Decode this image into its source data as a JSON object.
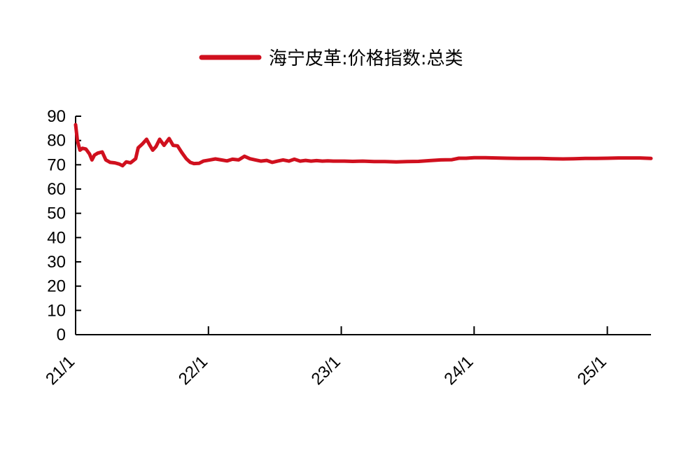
{
  "chart_data": {
    "type": "line",
    "title": "",
    "xlabel": "",
    "ylabel": "",
    "ylim": [
      0,
      90
    ],
    "yticks": [
      0,
      10,
      20,
      30,
      40,
      50,
      60,
      70,
      80,
      90
    ],
    "xlim": [
      "2021-01",
      "2025-05"
    ],
    "xticks": [
      {
        "label": "21/1",
        "date": "2021-01"
      },
      {
        "label": "22/1",
        "date": "2022-01"
      },
      {
        "label": "23/1",
        "date": "2023-01"
      },
      {
        "label": "24/1",
        "date": "2024-01"
      },
      {
        "label": "25/1",
        "date": "2025-01"
      }
    ],
    "grid": false,
    "legend_position": "top-center",
    "series": [
      {
        "name": "海宁皮革:价格指数:总类",
        "color": "#D0101E",
        "points": [
          [
            "2021-01-01",
            86.5
          ],
          [
            "2021-01-06",
            80.0
          ],
          [
            "2021-01-13",
            76.0
          ],
          [
            "2021-01-20",
            76.8
          ],
          [
            "2021-01-29",
            76.5
          ],
          [
            "2021-02-08",
            74.5
          ],
          [
            "2021-02-15",
            72.0
          ],
          [
            "2021-02-22",
            74.0
          ],
          [
            "2021-03-03",
            74.8
          ],
          [
            "2021-03-15",
            75.3
          ],
          [
            "2021-03-25",
            72.0
          ],
          [
            "2021-04-06",
            71.0
          ],
          [
            "2021-04-19",
            70.8
          ],
          [
            "2021-05-01",
            70.3
          ],
          [
            "2021-05-10",
            69.6
          ],
          [
            "2021-05-20",
            71.2
          ],
          [
            "2021-06-01",
            70.8
          ],
          [
            "2021-06-15",
            72.5
          ],
          [
            "2021-06-22",
            77.0
          ],
          [
            "2021-07-03",
            78.5
          ],
          [
            "2021-07-15",
            80.5
          ],
          [
            "2021-07-24",
            78.0
          ],
          [
            "2021-08-01",
            76.0
          ],
          [
            "2021-08-10",
            77.5
          ],
          [
            "2021-08-20",
            80.5
          ],
          [
            "2021-09-01",
            78.0
          ],
          [
            "2021-09-15",
            80.8
          ],
          [
            "2021-09-26",
            78.0
          ],
          [
            "2021-10-08",
            77.8
          ],
          [
            "2021-10-20",
            75.0
          ],
          [
            "2021-11-01",
            72.5
          ],
          [
            "2021-11-12",
            71.0
          ],
          [
            "2021-11-22",
            70.5
          ],
          [
            "2021-12-06",
            70.6
          ],
          [
            "2021-12-18",
            71.5
          ],
          [
            "2022-01-05",
            72.0
          ],
          [
            "2022-01-20",
            72.4
          ],
          [
            "2022-02-05",
            72.0
          ],
          [
            "2022-02-21",
            71.6
          ],
          [
            "2022-03-08",
            72.3
          ],
          [
            "2022-03-25",
            72.0
          ],
          [
            "2022-04-10",
            73.5
          ],
          [
            "2022-04-25",
            72.5
          ],
          [
            "2022-05-10",
            72.0
          ],
          [
            "2022-05-25",
            71.5
          ],
          [
            "2022-06-10",
            71.8
          ],
          [
            "2022-06-25",
            71.0
          ],
          [
            "2022-07-10",
            71.5
          ],
          [
            "2022-07-25",
            72.0
          ],
          [
            "2022-08-10",
            71.5
          ],
          [
            "2022-08-25",
            72.3
          ],
          [
            "2022-09-10",
            71.5
          ],
          [
            "2022-09-25",
            71.8
          ],
          [
            "2022-10-10",
            71.5
          ],
          [
            "2022-10-25",
            71.7
          ],
          [
            "2022-11-10",
            71.5
          ],
          [
            "2022-11-25",
            71.6
          ],
          [
            "2022-12-10",
            71.5
          ],
          [
            "2022-12-25",
            71.5
          ],
          [
            "2023-01-10",
            71.5
          ],
          [
            "2023-02-01",
            71.4
          ],
          [
            "2023-03-01",
            71.5
          ],
          [
            "2023-04-01",
            71.3
          ],
          [
            "2023-05-01",
            71.3
          ],
          [
            "2023-06-01",
            71.2
          ],
          [
            "2023-07-01",
            71.3
          ],
          [
            "2023-08-01",
            71.4
          ],
          [
            "2023-09-01",
            71.7
          ],
          [
            "2023-10-01",
            72.0
          ],
          [
            "2023-11-01",
            72.1
          ],
          [
            "2023-11-20",
            72.7
          ],
          [
            "2023-12-10",
            72.7
          ],
          [
            "2024-01-01",
            72.9
          ],
          [
            "2024-02-01",
            72.9
          ],
          [
            "2024-03-01",
            72.8
          ],
          [
            "2024-04-01",
            72.7
          ],
          [
            "2024-05-01",
            72.6
          ],
          [
            "2024-06-01",
            72.6
          ],
          [
            "2024-07-01",
            72.6
          ],
          [
            "2024-08-01",
            72.5
          ],
          [
            "2024-09-01",
            72.4
          ],
          [
            "2024-10-01",
            72.5
          ],
          [
            "2024-11-01",
            72.6
          ],
          [
            "2024-12-01",
            72.6
          ],
          [
            "2025-01-01",
            72.7
          ],
          [
            "2025-02-01",
            72.8
          ],
          [
            "2025-03-01",
            72.8
          ],
          [
            "2025-04-01",
            72.8
          ],
          [
            "2025-05-01",
            72.6
          ]
        ]
      }
    ]
  }
}
